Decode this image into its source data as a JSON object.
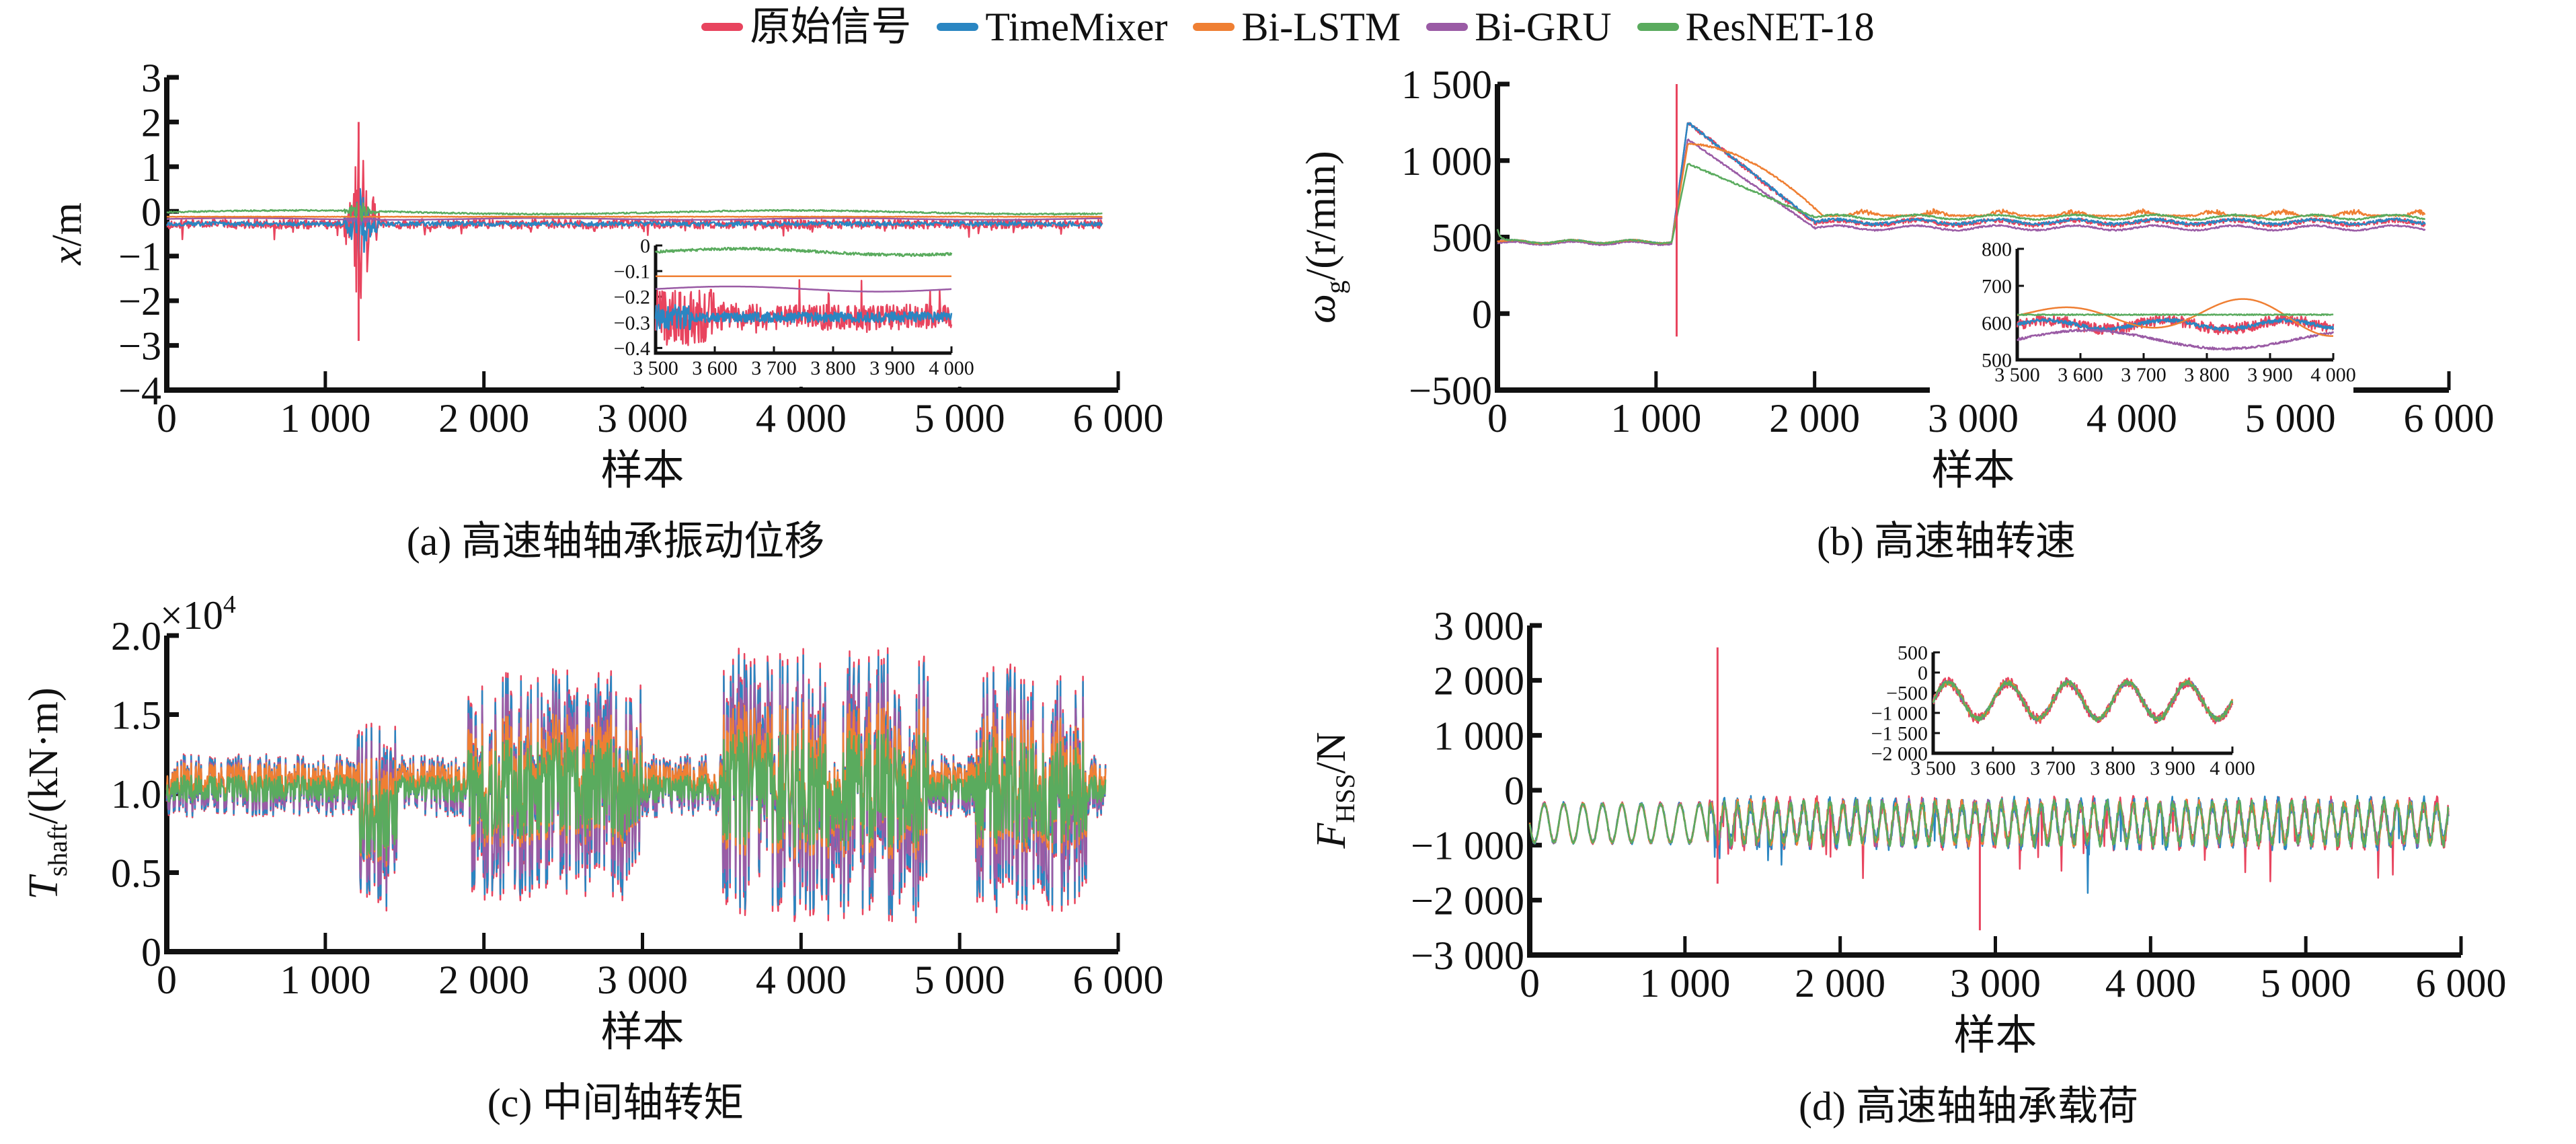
{
  "legend": [
    {
      "name": "原始信号",
      "color": "#e8445e"
    },
    {
      "name": "TimeMixer",
      "color": "#2a86c2"
    },
    {
      "name": "Bi-LSTM",
      "color": "#ef7f33"
    },
    {
      "name": "Bi-GRU",
      "color": "#9a5ba5"
    },
    {
      "name": "ResNET-18",
      "color": "#5aab5e"
    }
  ],
  "chart_data": [
    {
      "id": "a",
      "type": "line",
      "caption": "(a) 高速轴轴承振动位移",
      "ylabel_main": "x",
      "ylabel_unit": "/m",
      "xlabel": "样本",
      "xlim": [
        0,
        6000
      ],
      "ylim": [
        -4,
        3
      ],
      "xticks": [
        0,
        1000,
        2000,
        3000,
        4000,
        5000,
        6000
      ],
      "xtick_labels": [
        "0",
        "1 000",
        "2 000",
        "3 000",
        "4 000",
        "5 000",
        "6 000"
      ],
      "yticks": [
        -4,
        -3,
        -2,
        -1,
        0,
        1,
        2,
        3
      ],
      "ytick_labels": [
        "−4",
        "−3",
        "−2",
        "−1",
        "0",
        "1",
        "2",
        "3"
      ],
      "n_samples": 5900,
      "series_levels": {
        "原始信号": -0.28,
        "TimeMixer": -0.28,
        "Bi-LSTM": -0.12,
        "Bi-GRU": -0.17,
        "ResNET-18": -0.02
      },
      "events": [
        {
          "x": 1210,
          "min": -2.9,
          "max": 2.0
        }
      ],
      "inset": {
        "xlim": [
          3500,
          4000
        ],
        "ylim": [
          -0.42,
          0.0
        ],
        "xticks": [
          3500,
          3600,
          3700,
          3800,
          3900,
          4000
        ],
        "xtick_labels": [
          "3 500",
          "3 600",
          "3 700",
          "3 800",
          "3 900",
          "4 000"
        ],
        "yticks": [
          -0.4,
          -0.3,
          -0.2,
          -0.1,
          0
        ],
        "ytick_labels": [
          "−0.4",
          "−0.3",
          "−0.2",
          "−0.1",
          "0"
        ]
      }
    },
    {
      "id": "b",
      "type": "line",
      "caption": "(b) 高速轴转速",
      "ylabel_main": "ω",
      "ylabel_sub": "g",
      "ylabel_unit": "/(r/min)",
      "xlabel": "样本",
      "xlim": [
        0,
        6000
      ],
      "ylim": [
        -500,
        1500
      ],
      "xticks": [
        0,
        1000,
        2000,
        3000,
        4000,
        5000,
        6000
      ],
      "xtick_labels": [
        "0",
        "1 000",
        "2 000",
        "3 000",
        "4 000",
        "5 000",
        "6 000"
      ],
      "yticks": [
        -500,
        0,
        500,
        1000,
        1500
      ],
      "ytick_labels": [
        "−500",
        "0",
        "500",
        "1 000",
        "1 500"
      ],
      "n_samples": 5850,
      "baseline": 470,
      "peaks": {
        "原始信号": 1250,
        "TimeMixer": 1250,
        "Bi-LSTM": 1110,
        "Bi-GRU": 1140,
        "ResNET-18": 980
      },
      "steady": {
        "原始信号": 595,
        "TimeMixer": 600,
        "Bi-LSTM": 640,
        "Bi-GRU": 560,
        "ResNET-18": 630
      },
      "events": [
        {
          "x": 1130,
          "min": -150,
          "max": 1500
        }
      ],
      "inset": {
        "xlim": [
          3500,
          4000
        ],
        "ylim": [
          500,
          800
        ],
        "xticks": [
          3500,
          3600,
          3700,
          3800,
          3900,
          4000
        ],
        "xtick_labels": [
          "3 500",
          "3 600",
          "3 700",
          "3 800",
          "3 900",
          "4 000"
        ],
        "yticks": [
          500,
          600,
          700,
          800
        ],
        "ytick_labels": [
          "500",
          "600",
          "700",
          "800"
        ]
      }
    },
    {
      "id": "c",
      "type": "line",
      "caption": "(c) 中间轴转矩",
      "ylabel_main": "T",
      "ylabel_sub": "shaft",
      "ylabel_unit": "/(kN·m)",
      "multiplier": "×10",
      "multiplier_exp": "4",
      "xlabel": "样本",
      "xlim": [
        0,
        6000
      ],
      "ylim": [
        0,
        2.0
      ],
      "xticks": [
        0,
        1000,
        2000,
        3000,
        4000,
        5000,
        6000
      ],
      "xtick_labels": [
        "0",
        "1 000",
        "2 000",
        "3 000",
        "4 000",
        "5 000",
        "6 000"
      ],
      "yticks": [
        0,
        0.5,
        1.0,
        1.5,
        2.0
      ],
      "ytick_labels": [
        "0",
        "0.5",
        "1.0",
        "1.5",
        "2.0"
      ],
      "n_samples": 5920,
      "mean": 1.05
    },
    {
      "id": "d",
      "type": "line",
      "caption": "(d) 高速轴轴承载荷",
      "ylabel_main": "F",
      "ylabel_sub": "HSS",
      "ylabel_unit": "/N",
      "xlabel": "样本",
      "xlim": [
        0,
        6000
      ],
      "ylim": [
        -3000,
        3000
      ],
      "xticks": [
        0,
        1000,
        2000,
        3000,
        4000,
        5000,
        6000
      ],
      "xtick_labels": [
        "0",
        "1 000",
        "2 000",
        "3 000",
        "4 000",
        "5 000",
        "6 000"
      ],
      "yticks": [
        -3000,
        -2000,
        -1000,
        0,
        1000,
        2000,
        3000
      ],
      "ytick_labels": [
        "−3 000",
        "−2 000",
        "−1 000",
        "0",
        "1 000",
        "2 000",
        "3 000"
      ],
      "n_samples": 5920,
      "mean": -600,
      "events": [
        {
          "x": 1210,
          "min": -1700,
          "max": 2600
        },
        {
          "x": 2900,
          "min": -2550,
          "max": -600
        }
      ],
      "inset": {
        "xlim": [
          3500,
          4000
        ],
        "ylim": [
          -2000,
          500
        ],
        "xticks": [
          3500,
          3600,
          3700,
          3800,
          3900,
          4000
        ],
        "xtick_labels": [
          "3 500",
          "3 600",
          "3 700",
          "3 800",
          "3 900",
          "4 000"
        ],
        "yticks": [
          -2000,
          -1500,
          -1000,
          -500,
          0,
          500
        ],
        "ytick_labels": [
          "−2 000",
          "−1 500",
          "−1 000",
          "−500",
          "0",
          "500"
        ]
      }
    }
  ]
}
